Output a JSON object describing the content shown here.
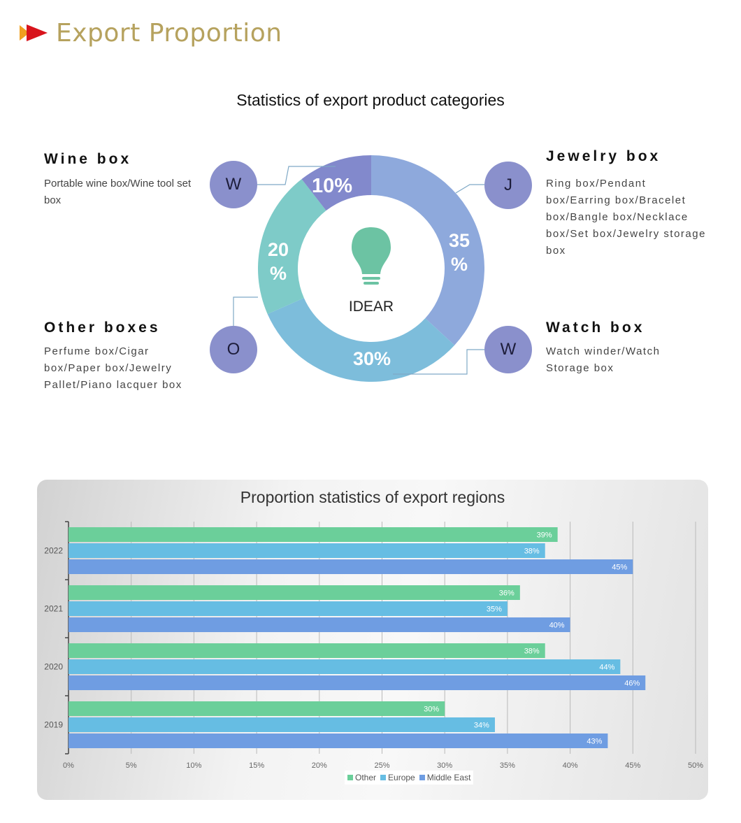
{
  "header": {
    "title": "Export Proportion"
  },
  "categories_section": {
    "title": "Statistics of export product categories",
    "center_label": "IDEAR",
    "items": [
      {
        "letter": "W",
        "name": "Wine box",
        "desc": "Portable wine box/Wine tool set box",
        "percent": "10%",
        "value": 10
      },
      {
        "letter": "J",
        "name": "Jewelry box",
        "desc": "Ring box/Pendant box/Earring box/Bracelet box/Bangle box/Necklace box/Set box/Jewelry storage box",
        "percent": "35 %",
        "value": 35
      },
      {
        "letter": "W",
        "name": "Watch box",
        "desc": "Watch winder/Watch Storage box",
        "percent": "30%",
        "value": 30
      },
      {
        "letter": "O",
        "name": "Other boxes",
        "desc": "Perfume box/Cigar box/Paper box/Jewelry Pallet/Piano lacquer box",
        "percent": "20 %",
        "value": 20
      }
    ],
    "colors": {
      "wine": "#8289cc",
      "jewelry": "#8ea9dc",
      "watch": "#7dbddb",
      "other": "#7ecbc8",
      "bulb": "#6cc3a3",
      "bubble": "#8a90cc"
    }
  },
  "chart_data": {
    "type": "bar",
    "orientation": "horizontal",
    "title": "Proportion statistics of export regions",
    "categories": [
      "2022",
      "2021",
      "2020",
      "2019"
    ],
    "series": [
      {
        "name": "Other",
        "color": "#6bcf9a",
        "values": [
          39,
          36,
          38,
          30
        ],
        "labels": [
          "39%",
          "36%",
          "38%",
          "30%"
        ]
      },
      {
        "name": "Europe",
        "color": "#66bde3",
        "values": [
          38,
          35,
          44,
          34
        ],
        "labels": [
          "38%",
          "35%",
          "44%",
          "34%"
        ]
      },
      {
        "name": "Middle East",
        "color": "#6f9de2",
        "values": [
          45,
          40,
          46,
          43
        ],
        "labels": [
          "45%",
          "40%",
          "46%",
          "43%"
        ]
      }
    ],
    "xlim": [
      0,
      50
    ],
    "xticks": [
      "0%",
      "5%",
      "10%",
      "15%",
      "20%",
      "25%",
      "30%",
      "35%",
      "40%",
      "45%",
      "50%"
    ],
    "grid": true,
    "legend": "bottom"
  }
}
